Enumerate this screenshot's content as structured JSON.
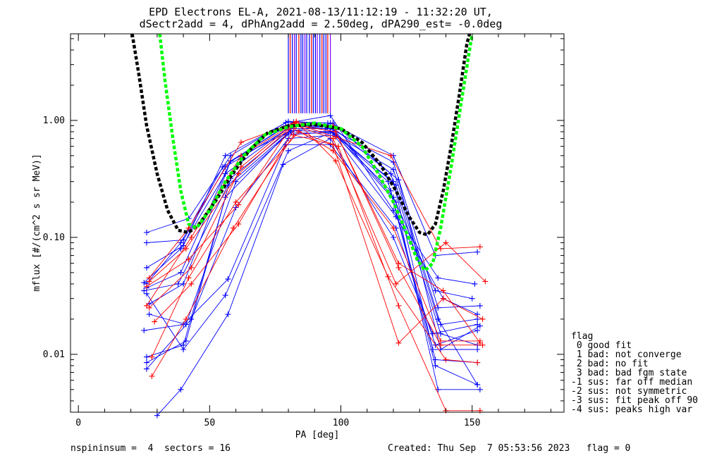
{
  "chart_data": {
    "type": "line",
    "title_lines": [
      "EPD Electrons EL-A, 2021-08-13/11:12:19 - 11:32:20 UT,",
      "dSectr2add = 4, dPhAng2add = 2.50deg, dPA290_est=  -0.0deg"
    ],
    "xlabel": "PA [deg]",
    "ylabel": "mflux [#/(cm^2 s sr MeV)]",
    "x_range": [
      -3,
      185
    ],
    "y_range_log": [
      0.0032,
      5.5
    ],
    "x_ticks": [
      {
        "v": 0,
        "label": "0"
      },
      {
        "v": 50,
        "label": "50"
      },
      {
        "v": 100,
        "label": "100"
      },
      {
        "v": 150,
        "label": "150"
      }
    ],
    "y_ticks": [
      {
        "v": 0.01,
        "label": "0.01"
      },
      {
        "v": 0.1,
        "label": "0.10"
      },
      {
        "v": 1.0,
        "label": "1.00"
      }
    ],
    "legend_title": "flag",
    "legend": [
      " 0 good fit",
      " 1 bad: not converge",
      " 2 bad: no fit",
      " 3 bad: bad fgm state",
      "-1 sus: far off median",
      "-2 sus: not symmetric",
      "-3 sus: fit peak off 90",
      "-4 sus: peaks high var"
    ],
    "footer_left": "nspininsum =  4  sectors = 16",
    "footer_right": "Created: Thu Sep  7 05:53:56 2023   flag = 0",
    "colors": {
      "red": "#ff0000",
      "blue": "#0000ff",
      "green": "#00ff00",
      "black": "#000000",
      "purple": "#7f00ff"
    },
    "fits": [
      {
        "name": "black-fit",
        "color": "#000000",
        "points": [
          [
            20.5,
            5.5
          ],
          [
            23,
            2.5
          ],
          [
            26,
            0.9
          ],
          [
            30,
            0.35
          ],
          [
            34,
            0.17
          ],
          [
            38,
            0.115
          ],
          [
            42,
            0.11
          ],
          [
            46,
            0.13
          ],
          [
            52,
            0.2
          ],
          [
            58,
            0.33
          ],
          [
            65,
            0.55
          ],
          [
            72,
            0.78
          ],
          [
            80,
            0.9
          ],
          [
            90,
            0.92
          ],
          [
            100,
            0.85
          ],
          [
            108,
            0.65
          ],
          [
            115,
            0.42
          ],
          [
            121,
            0.25
          ],
          [
            126,
            0.15
          ],
          [
            130,
            0.11
          ],
          [
            133,
            0.105
          ],
          [
            136,
            0.13
          ],
          [
            139,
            0.25
          ],
          [
            142,
            0.6
          ],
          [
            145,
            1.6
          ],
          [
            148,
            4.5
          ],
          [
            149,
            5.5
          ]
        ]
      },
      {
        "name": "green-fit",
        "color": "#00ff00",
        "points": [
          [
            31,
            5.5
          ],
          [
            33,
            2.2
          ],
          [
            36,
            0.7
          ],
          [
            39,
            0.25
          ],
          [
            42,
            0.13
          ],
          [
            45,
            0.12
          ],
          [
            50,
            0.17
          ],
          [
            56,
            0.3
          ],
          [
            63,
            0.5
          ],
          [
            71,
            0.75
          ],
          [
            80,
            0.88
          ],
          [
            90,
            0.95
          ],
          [
            100,
            0.85
          ],
          [
            108,
            0.6
          ],
          [
            114,
            0.36
          ],
          [
            120,
            0.2
          ],
          [
            125,
            0.11
          ],
          [
            129,
            0.065
          ],
          [
            132,
            0.052
          ],
          [
            135,
            0.06
          ],
          [
            138,
            0.12
          ],
          [
            142,
            0.4
          ],
          [
            146,
            1.5
          ],
          [
            149,
            4.0
          ],
          [
            150,
            5.5
          ]
        ]
      }
    ],
    "series": [
      {
        "name": "b1",
        "color": "#0000ff",
        "points": [
          [
            26,
            0.11
          ],
          [
            42,
            0.145
          ],
          [
            58,
            0.5
          ],
          [
            79,
            0.96
          ],
          [
            96,
            0.95
          ],
          [
            120,
            0.5
          ],
          [
            136,
            0.07
          ],
          [
            152,
            0.075
          ]
        ]
      },
      {
        "name": "b2",
        "color": "#0000ff",
        "points": [
          [
            26,
            0.09
          ],
          [
            40,
            0.095
          ],
          [
            56,
            0.4
          ],
          [
            80,
            0.85
          ],
          [
            96,
            0.85
          ],
          [
            120,
            0.44
          ],
          [
            137,
            0.025
          ],
          [
            153,
            0.026
          ]
        ]
      },
      {
        "name": "b3",
        "color": "#0000ff",
        "points": [
          [
            25,
            0.041
          ],
          [
            39,
            0.08
          ],
          [
            56,
            0.35
          ],
          [
            81,
            0.9
          ],
          [
            94,
            0.85
          ],
          [
            120,
            0.38
          ],
          [
            138,
            0.018
          ],
          [
            152,
            0.02
          ]
        ]
      },
      {
        "name": "b4",
        "color": "#0000ff",
        "points": [
          [
            26,
            0.037
          ],
          [
            39,
            0.05
          ],
          [
            58,
            0.45
          ],
          [
            81,
            0.82
          ],
          [
            96,
            0.8
          ],
          [
            120,
            0.3
          ],
          [
            135,
            0.011
          ],
          [
            152,
            0.011
          ]
        ]
      },
      {
        "name": "b5",
        "color": "#0000ff",
        "points": [
          [
            25,
            0.035
          ],
          [
            38,
            0.04
          ],
          [
            57,
            0.28
          ],
          [
            80,
            0.78
          ],
          [
            97,
            0.78
          ],
          [
            119,
            0.25
          ],
          [
            136,
            0.009
          ],
          [
            152,
            0.0085
          ]
        ]
      },
      {
        "name": "b6",
        "color": "#0000ff",
        "points": [
          [
            26,
            0.0095
          ],
          [
            40,
            0.012
          ],
          [
            56,
            0.22
          ],
          [
            79,
            0.75
          ],
          [
            97,
            0.8
          ],
          [
            121,
            0.2
          ],
          [
            137,
            0.005
          ],
          [
            153,
            0.005
          ]
        ]
      },
      {
        "name": "b7",
        "color": "#0000ff",
        "points": [
          [
            26,
            0.0085
          ],
          [
            41,
            0.013
          ],
          [
            58,
            0.32
          ],
          [
            82,
            0.88
          ],
          [
            95,
            0.88
          ],
          [
            121,
            0.15
          ],
          [
            139,
            0.03
          ],
          [
            152,
            0.022
          ]
        ]
      },
      {
        "name": "b8",
        "color": "#0000ff",
        "points": [
          [
            26,
            0.0075
          ],
          [
            43,
            0.02
          ],
          [
            60,
            0.18
          ],
          [
            80,
            0.7
          ],
          [
            98,
            0.75
          ],
          [
            118,
            0.3
          ],
          [
            136,
            0.008
          ],
          [
            152,
            0.0055
          ]
        ]
      },
      {
        "name": "b9",
        "color": "#0000ff",
        "points": [
          [
            25,
            0.016
          ],
          [
            40,
            0.018
          ],
          [
            57,
            0.044
          ],
          [
            79,
            0.62
          ],
          [
            96,
            0.62
          ],
          [
            121,
            0.12
          ],
          [
            136,
            0.012
          ],
          [
            152,
            0.016
          ]
        ]
      },
      {
        "name": "b10",
        "color": "#0000ff",
        "points": [
          [
            30,
            0.003
          ],
          [
            39,
            0.005
          ],
          [
            57,
            0.022
          ],
          [
            78,
            0.42
          ],
          [
            96,
            0.7
          ],
          [
            120,
            0.1
          ],
          [
            135,
            0.015
          ],
          [
            152,
            0.018
          ]
        ]
      },
      {
        "name": "b11",
        "color": "#0000ff",
        "points": [
          [
            26,
            0.055
          ],
          [
            40,
            0.085
          ],
          [
            56,
            0.5
          ],
          [
            80,
            0.98
          ],
          [
            95,
            0.95
          ],
          [
            120,
            0.22
          ],
          [
            136,
            0.035
          ],
          [
            150,
            0.03
          ]
        ]
      },
      {
        "name": "b12",
        "color": "#0000ff",
        "points": [
          [
            27,
            0.027
          ],
          [
            40,
            0.04
          ],
          [
            58,
            0.45
          ],
          [
            82,
            0.97
          ],
          [
            96,
            1.1
          ],
          [
            120,
            0.17
          ],
          [
            137,
            0.045
          ],
          [
            151,
            0.04
          ]
        ]
      },
      {
        "name": "b13",
        "color": "#0000ff",
        "points": [
          [
            27,
            0.022
          ],
          [
            41,
            0.018
          ],
          [
            60,
            0.3
          ],
          [
            81,
            0.8
          ],
          [
            97,
            0.95
          ],
          [
            119,
            0.35
          ],
          [
            138,
            0.015
          ],
          [
            152,
            0.012
          ]
        ]
      },
      {
        "name": "b14",
        "color": "#0000ff",
        "points": [
          [
            26,
            0.033
          ],
          [
            40,
            0.011
          ],
          [
            56,
            0.032
          ],
          [
            80,
            0.55
          ],
          [
            97,
            0.8
          ],
          [
            121,
            0.28
          ],
          [
            137,
            0.02
          ],
          [
            152,
            0.0055
          ]
        ]
      },
      {
        "name": "b15",
        "color": "#0000ff",
        "points": [
          [
            26,
            0.04
          ],
          [
            39,
            0.09
          ],
          [
            55,
            0.4
          ],
          [
            79,
            0.9
          ],
          [
            96,
            0.9
          ],
          [
            122,
            0.31
          ],
          [
            138,
            0.011
          ],
          [
            153,
            0.0175
          ]
        ]
      },
      {
        "name": "r1",
        "color": "#ff0000",
        "points": [
          [
            27,
            0.045
          ],
          [
            42,
            0.12
          ],
          [
            62,
            0.65
          ],
          [
            82,
            0.95
          ],
          [
            98,
            0.72
          ],
          [
            119,
            0.5
          ],
          [
            138,
            0.08
          ],
          [
            153,
            0.083
          ]
        ]
      },
      {
        "name": "r2",
        "color": "#ff0000",
        "points": [
          [
            26,
            0.038
          ],
          [
            42,
            0.065
          ],
          [
            61,
            0.19
          ],
          [
            81,
            0.88
          ],
          [
            97,
            0.55
          ],
          [
            120,
            0.12
          ],
          [
            138,
            0.013
          ],
          [
            153,
            0.013
          ]
        ]
      },
      {
        "name": "r3",
        "color": "#ff0000",
        "points": [
          [
            27,
            0.025
          ],
          [
            43,
            0.055
          ],
          [
            62,
            0.4
          ],
          [
            83,
            0.98
          ],
          [
            98,
            0.45
          ],
          [
            118,
            0.046
          ],
          [
            140,
            0.009
          ],
          [
            152,
            0.0085
          ]
        ]
      },
      {
        "name": "r4",
        "color": "#ff0000",
        "points": [
          [
            28,
            0.0095
          ],
          [
            42,
            0.045
          ],
          [
            60,
            0.2
          ],
          [
            84,
            0.8
          ],
          [
            99,
            0.6
          ],
          [
            122,
            0.026
          ],
          [
            140,
            0.0033
          ],
          [
            153,
            0.0033
          ]
        ]
      },
      {
        "name": "r5",
        "color": "#ff0000",
        "points": [
          [
            28,
            0.0065
          ],
          [
            41,
            0.02
          ],
          [
            59,
            0.12
          ],
          [
            82,
            0.75
          ],
          [
            97,
            0.62
          ],
          [
            122,
            0.0125
          ],
          [
            139,
            0.03
          ],
          [
            154,
            0.02
          ]
        ]
      },
      {
        "name": "r6",
        "color": "#ff0000",
        "points": [
          [
            29,
            0.019
          ],
          [
            43,
            0.04
          ],
          [
            61,
            0.13
          ],
          [
            83,
            0.9
          ],
          [
            97,
            0.7
          ],
          [
            121,
            0.04
          ],
          [
            140,
            0.09
          ],
          [
            155,
            0.042
          ]
        ]
      },
      {
        "name": "r7",
        "color": "#ff0000",
        "points": [
          [
            27,
            0.042
          ],
          [
            41,
            0.08
          ],
          [
            61,
            0.35
          ],
          [
            82,
            0.92
          ],
          [
            98,
            0.8
          ],
          [
            122,
            0.06
          ],
          [
            139,
            0.035
          ],
          [
            153,
            0.0125
          ]
        ]
      },
      {
        "name": "r8",
        "color": "#ff0000",
        "points": [
          [
            26,
            0.026
          ],
          [
            43,
            0.1
          ],
          [
            62,
            0.5
          ],
          [
            83,
            0.96
          ],
          [
            97,
            0.9
          ],
          [
            122,
            0.055
          ],
          [
            138,
            0.012
          ],
          [
            154,
            0.012
          ]
        ]
      }
    ],
    "spikes": [
      {
        "v": 80,
        "color": "#0000ff"
      },
      {
        "v": 80.7,
        "color": "#ff0000"
      },
      {
        "v": 81.5,
        "color": "#0000ff"
      },
      {
        "v": 82.3,
        "color": "#7f00ff"
      },
      {
        "v": 83,
        "color": "#0000ff"
      },
      {
        "v": 84,
        "color": "#ff0000"
      },
      {
        "v": 84.8,
        "color": "#0000ff"
      },
      {
        "v": 85.5,
        "color": "#0000ff"
      },
      {
        "v": 86.3,
        "color": "#7f00ff"
      },
      {
        "v": 87,
        "color": "#0000ff"
      },
      {
        "v": 88,
        "color": "#0000ff"
      },
      {
        "v": 88.8,
        "color": "#ff0000"
      },
      {
        "v": 89.5,
        "color": "#0000ff"
      },
      {
        "v": 90.3,
        "color": "#0000ff"
      },
      {
        "v": 91,
        "color": "#7f00ff"
      },
      {
        "v": 92,
        "color": "#0000ff"
      },
      {
        "v": 92.8,
        "color": "#ff0000"
      },
      {
        "v": 93.5,
        "color": "#0000ff"
      },
      {
        "v": 94.3,
        "color": "#0000ff"
      },
      {
        "v": 95,
        "color": "#ff0000"
      },
      {
        "v": 96,
        "color": "#7f00ff"
      }
    ],
    "spike_range": [
      1.15,
      5.5
    ]
  }
}
